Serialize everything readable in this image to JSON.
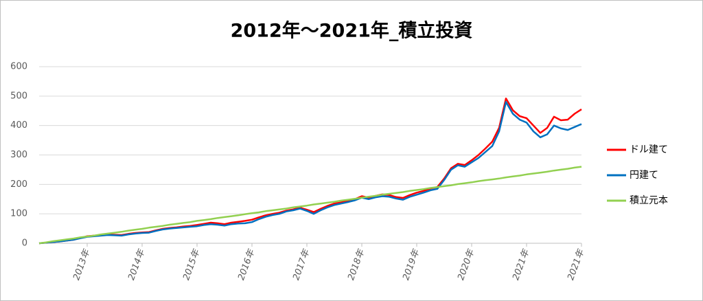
{
  "chart_data": {
    "type": "line",
    "title": "2012年～2021年_積立投資",
    "categories": [
      null,
      null,
      null,
      null,
      null,
      null,
      null,
      "2013年",
      null,
      null,
      null,
      null,
      null,
      null,
      null,
      "2014年",
      null,
      null,
      null,
      null,
      null,
      null,
      null,
      "2015年",
      null,
      null,
      null,
      null,
      null,
      null,
      null,
      "2016年",
      null,
      null,
      null,
      null,
      null,
      null,
      null,
      "2017年",
      null,
      null,
      null,
      null,
      null,
      null,
      null,
      "2018年",
      null,
      null,
      null,
      null,
      null,
      null,
      null,
      "2019年",
      null,
      null,
      null,
      null,
      null,
      null,
      null,
      "2020年",
      null,
      null,
      null,
      null,
      null,
      null,
      null,
      "2021年",
      null,
      null,
      null,
      null,
      null,
      null,
      null,
      "2021年"
    ],
    "series": [
      {
        "name": "ドル建て",
        "color": "#ff0000",
        "values": [
          0,
          2,
          4,
          6,
          9,
          12,
          18,
          24,
          26,
          28,
          30,
          29,
          28,
          32,
          35,
          37,
          38,
          44,
          49,
          52,
          54,
          57,
          59,
          62,
          66,
          70,
          68,
          65,
          70,
          73,
          76,
          80,
          88,
          95,
          100,
          104,
          111,
          115,
          121,
          114,
          106,
          117,
          127,
          135,
          139,
          145,
          150,
          160,
          155,
          161,
          166,
          164,
          157,
          154,
          164,
          172,
          178,
          186,
          191,
          220,
          255,
          270,
          266,
          282,
          300,
          322,
          345,
          392,
          492,
          452,
          432,
          425,
          400,
          375,
          392,
          430,
          418,
          420,
          440,
          455
        ]
      },
      {
        "name": "円建て",
        "color": "#0070c0",
        "values": [
          0,
          2,
          4,
          6,
          9,
          12,
          17,
          22,
          24,
          26,
          28,
          27,
          26,
          30,
          33,
          35,
          36,
          42,
          47,
          50,
          52,
          54,
          56,
          58,
          62,
          65,
          63,
          60,
          65,
          67,
          68,
          72,
          82,
          90,
          96,
          100,
          108,
          112,
          118,
          110,
          100,
          112,
          122,
          130,
          135,
          140,
          146,
          155,
          150,
          156,
          160,
          158,
          152,
          148,
          158,
          165,
          172,
          180,
          185,
          215,
          250,
          265,
          260,
          275,
          290,
          310,
          330,
          380,
          480,
          440,
          420,
          410,
          380,
          360,
          370,
          400,
          390,
          385,
          395,
          405
        ]
      },
      {
        "name": "積立元本",
        "color": "#92d050",
        "values": [
          0,
          3,
          7,
          10,
          13,
          16,
          20,
          23,
          26,
          30,
          33,
          36,
          39,
          43,
          46,
          49,
          53,
          56,
          59,
          63,
          66,
          69,
          72,
          76,
          79,
          82,
          86,
          89,
          92,
          95,
          99,
          102,
          105,
          109,
          112,
          115,
          118,
          122,
          125,
          128,
          132,
          135,
          138,
          141,
          145,
          148,
          151,
          155,
          158,
          161,
          165,
          168,
          171,
          174,
          178,
          181,
          184,
          188,
          191,
          194,
          197,
          201,
          204,
          207,
          211,
          214,
          217,
          220,
          224,
          227,
          230,
          234,
          237,
          240,
          243,
          247,
          250,
          253,
          257,
          260
        ]
      }
    ],
    "ylim": [
      0,
      600
    ],
    "yticks": [
      0,
      100,
      200,
      300,
      400,
      500,
      600
    ],
    "grid": true,
    "legend": "right"
  }
}
